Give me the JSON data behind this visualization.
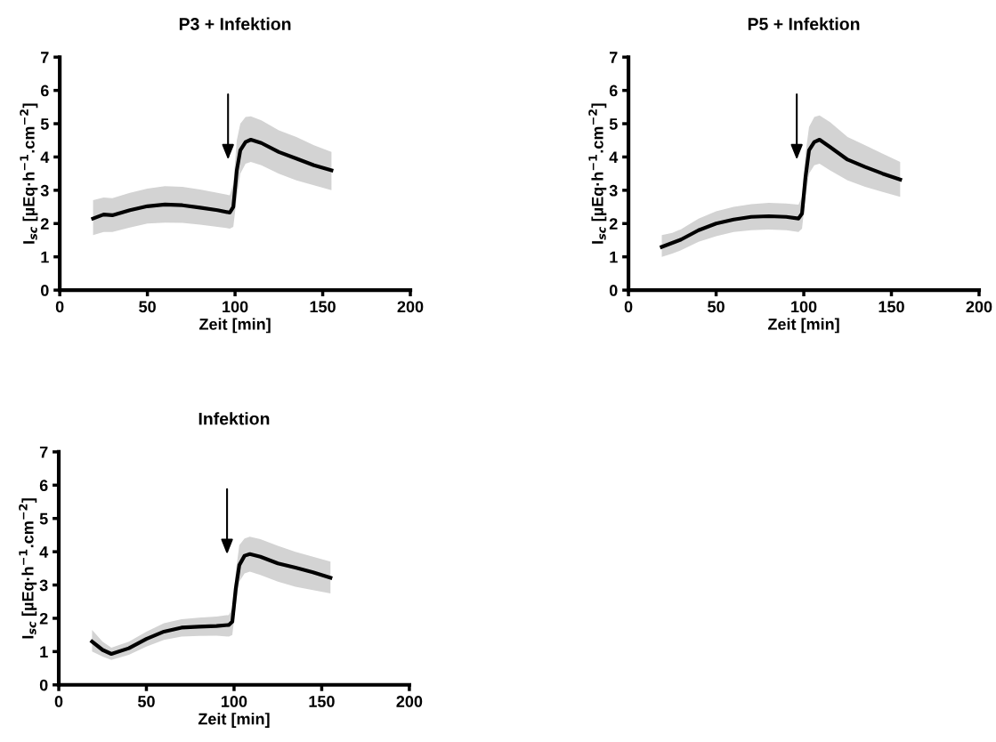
{
  "chart_data": [
    {
      "type": "line",
      "title": "P3 + Infektion",
      "xlabel": "Zeit [min]",
      "ylabel": "I$_{sc}$ [µEq·h$^{−1}$.cm$^{−2}$]",
      "xlim": [
        0,
        200
      ],
      "xticks": [
        0,
        50,
        100,
        150,
        200
      ],
      "ylim": [
        0,
        7
      ],
      "yticks": [
        0,
        1,
        2,
        3,
        4,
        5,
        6,
        7
      ],
      "grid": false,
      "legend": false,
      "series": [
        {
          "color": "#000000",
          "x": [
            19,
            25,
            30,
            40,
            50,
            60,
            70,
            80,
            90,
            97,
            99,
            101,
            103,
            106,
            109,
            115,
            125,
            135,
            145,
            155
          ],
          "values": [
            2.15,
            2.27,
            2.25,
            2.4,
            2.52,
            2.57,
            2.55,
            2.48,
            2.4,
            2.33,
            2.5,
            3.6,
            4.2,
            4.45,
            4.52,
            4.42,
            4.15,
            3.95,
            3.75,
            3.6
          ],
          "lower": [
            1.65,
            1.75,
            1.75,
            1.88,
            2.0,
            2.03,
            2.02,
            1.97,
            1.9,
            1.85,
            1.9,
            2.8,
            3.5,
            3.8,
            3.85,
            3.75,
            3.5,
            3.3,
            3.15,
            3.0
          ],
          "upper": [
            2.7,
            2.78,
            2.76,
            2.92,
            3.05,
            3.12,
            3.1,
            3.02,
            2.92,
            2.85,
            3.2,
            4.5,
            5.0,
            5.2,
            5.22,
            5.1,
            4.8,
            4.6,
            4.35,
            4.15
          ]
        }
      ]
    },
    {
      "type": "line",
      "title": "P5 + Infektion",
      "xlabel": "Zeit [min]",
      "ylabel": "I$_{sc}$ [µEq·h$^{−1}$.cm$^{−2}$]",
      "xlim": [
        0,
        200
      ],
      "xticks": [
        0,
        50,
        100,
        150,
        200
      ],
      "ylim": [
        0,
        7
      ],
      "yticks": [
        0,
        1,
        2,
        3,
        4,
        5,
        6,
        7
      ],
      "grid": false,
      "legend": false,
      "series": [
        {
          "color": "#000000",
          "x": [
            19,
            25,
            30,
            40,
            50,
            60,
            70,
            80,
            90,
            97,
            99,
            101,
            103,
            106,
            109,
            115,
            125,
            135,
            145,
            155
          ],
          "values": [
            1.3,
            1.42,
            1.52,
            1.8,
            2.0,
            2.12,
            2.2,
            2.22,
            2.2,
            2.15,
            2.3,
            3.4,
            4.2,
            4.45,
            4.52,
            4.3,
            3.92,
            3.7,
            3.5,
            3.32
          ],
          "lower": [
            1.0,
            1.1,
            1.2,
            1.45,
            1.62,
            1.75,
            1.8,
            1.82,
            1.8,
            1.75,
            1.85,
            2.8,
            3.5,
            3.75,
            3.8,
            3.6,
            3.3,
            3.1,
            2.95,
            2.8
          ],
          "upper": [
            1.65,
            1.72,
            1.83,
            2.15,
            2.37,
            2.5,
            2.58,
            2.62,
            2.6,
            2.57,
            2.8,
            4.1,
            4.9,
            5.2,
            5.25,
            5.05,
            4.6,
            4.35,
            4.1,
            3.85
          ]
        }
      ]
    },
    {
      "type": "line",
      "title": "Infektion",
      "xlabel": "Zeit [min]",
      "ylabel": "I$_{sc}$ [µEq·h$^{−1}$.cm$^{−2}$]",
      "xlim": [
        0,
        200
      ],
      "xticks": [
        0,
        50,
        100,
        150,
        200
      ],
      "ylim": [
        0,
        7
      ],
      "yticks": [
        0,
        1,
        2,
        3,
        4,
        5,
        6,
        7
      ],
      "grid": false,
      "legend": false,
      "series": [
        {
          "color": "#000000",
          "x": [
            19,
            25,
            30,
            40,
            50,
            60,
            70,
            80,
            90,
            97,
            99,
            101,
            103,
            106,
            109,
            115,
            125,
            135,
            145,
            155
          ],
          "values": [
            1.3,
            1.05,
            0.93,
            1.1,
            1.38,
            1.6,
            1.72,
            1.75,
            1.77,
            1.8,
            1.9,
            2.9,
            3.6,
            3.88,
            3.93,
            3.85,
            3.65,
            3.52,
            3.38,
            3.22
          ],
          "lower": [
            1.0,
            0.85,
            0.75,
            0.9,
            1.15,
            1.35,
            1.45,
            1.47,
            1.48,
            1.45,
            1.5,
            2.4,
            3.1,
            3.35,
            3.4,
            3.3,
            3.1,
            2.95,
            2.85,
            2.75
          ],
          "upper": [
            1.65,
            1.3,
            1.12,
            1.3,
            1.6,
            1.85,
            1.97,
            2.02,
            2.05,
            2.1,
            2.3,
            3.4,
            4.2,
            4.4,
            4.45,
            4.38,
            4.18,
            4.0,
            3.85,
            3.7
          ]
        }
      ]
    }
  ]
}
